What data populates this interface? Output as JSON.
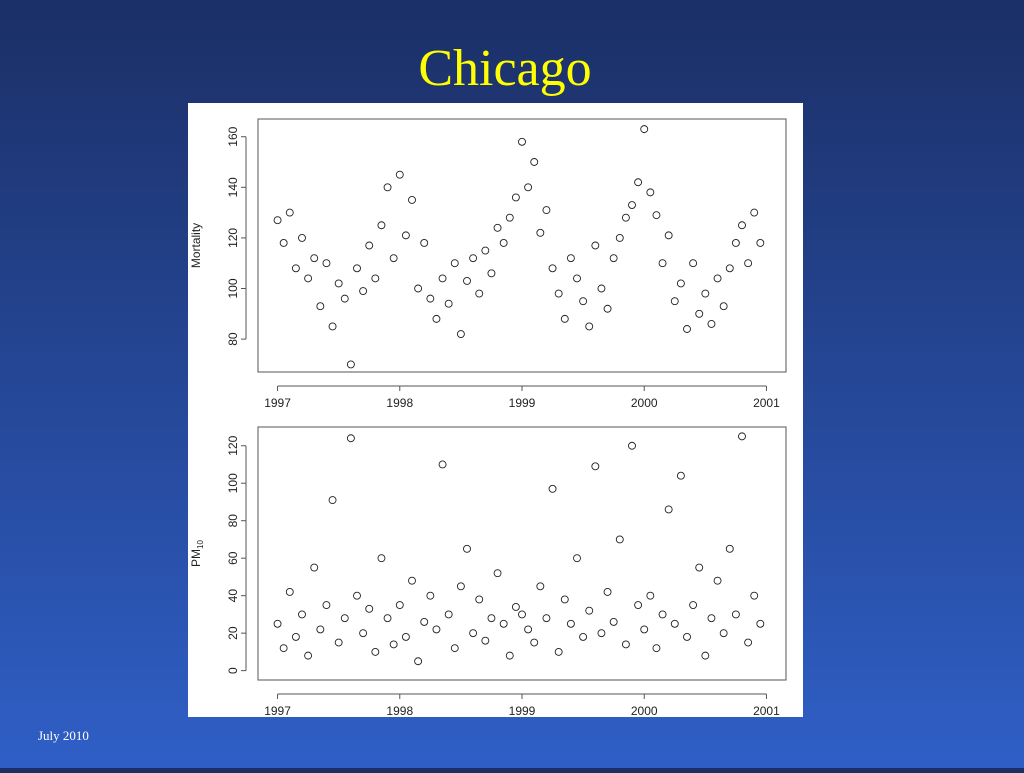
{
  "slide": {
    "title": "Chicago",
    "footer": "July 2010"
  },
  "chart_data": [
    {
      "type": "scatter",
      "ylabel": "Mortality",
      "x": [
        1997.0,
        1997.05,
        1997.1,
        1997.15,
        1997.2,
        1997.25,
        1997.3,
        1997.35,
        1997.4,
        1997.45,
        1997.5,
        1997.55,
        1997.6,
        1997.65,
        1997.7,
        1997.75,
        1997.8,
        1997.85,
        1997.9,
        1997.95,
        1998.0,
        1998.05,
        1998.1,
        1998.15,
        1998.2,
        1998.25,
        1998.3,
        1998.35,
        1998.4,
        1998.45,
        1998.5,
        1998.55,
        1998.6,
        1998.65,
        1998.7,
        1998.75,
        1998.8,
        1998.85,
        1998.9,
        1998.95,
        1999.0,
        1999.05,
        1999.1,
        1999.15,
        1999.2,
        1999.25,
        1999.3,
        1999.35,
        1999.4,
        1999.45,
        1999.5,
        1999.55,
        1999.6,
        1999.65,
        1999.7,
        1999.75,
        1999.8,
        1999.85,
        1999.9,
        1999.95,
        2000.0,
        2000.05,
        2000.1,
        2000.15,
        2000.2,
        2000.25,
        2000.3,
        2000.35,
        2000.4,
        2000.45,
        2000.5,
        2000.55,
        2000.6,
        2000.65,
        2000.7,
        2000.75,
        2000.8,
        2000.85,
        2000.9,
        2000.95
      ],
      "values": [
        127,
        118,
        130,
        108,
        120,
        104,
        112,
        93,
        110,
        85,
        102,
        96,
        70,
        108,
        99,
        117,
        104,
        125,
        140,
        112,
        145,
        121,
        135,
        100,
        118,
        96,
        88,
        104,
        94,
        110,
        82,
        103,
        112,
        98,
        115,
        106,
        124,
        118,
        128,
        136,
        158,
        140,
        150,
        122,
        131,
        108,
        98,
        88,
        112,
        104,
        95,
        85,
        117,
        100,
        92,
        112,
        120,
        128,
        133,
        142,
        163,
        138,
        129,
        110,
        121,
        95,
        102,
        84,
        110,
        90,
        98,
        86,
        104,
        93,
        108,
        118,
        125,
        110,
        130,
        118
      ],
      "xlim": [
        1996.84,
        2001.16
      ],
      "ylim": [
        67,
        167
      ],
      "xticks": [
        1997,
        1998,
        1999,
        2000,
        2001
      ],
      "yticks": [
        80,
        100,
        120,
        140,
        160
      ],
      "color": "#222222"
    },
    {
      "type": "scatter",
      "ylabel": "PM",
      "ylabel_subscript": "10",
      "x": [
        1997.0,
        1997.05,
        1997.1,
        1997.15,
        1997.2,
        1997.25,
        1997.3,
        1997.35,
        1997.4,
        1997.45,
        1997.5,
        1997.55,
        1997.6,
        1997.65,
        1997.7,
        1997.75,
        1997.8,
        1997.85,
        1997.9,
        1997.95,
        1998.0,
        1998.05,
        1998.1,
        1998.15,
        1998.2,
        1998.25,
        1998.3,
        1998.35,
        1998.4,
        1998.45,
        1998.5,
        1998.55,
        1998.6,
        1998.65,
        1998.7,
        1998.75,
        1998.8,
        1998.85,
        1998.9,
        1998.95,
        1999.0,
        1999.05,
        1999.1,
        1999.15,
        1999.2,
        1999.25,
        1999.3,
        1999.35,
        1999.4,
        1999.45,
        1999.5,
        1999.55,
        1999.6,
        1999.65,
        1999.7,
        1999.75,
        1999.8,
        1999.85,
        1999.9,
        1999.95,
        2000.0,
        2000.05,
        2000.1,
        2000.15,
        2000.2,
        2000.25,
        2000.3,
        2000.35,
        2000.4,
        2000.45,
        2000.5,
        2000.55,
        2000.6,
        2000.65,
        2000.7,
        2000.75,
        2000.8,
        2000.85,
        2000.9,
        2000.95
      ],
      "values": [
        25,
        12,
        42,
        18,
        30,
        8,
        55,
        22,
        35,
        91,
        15,
        28,
        124,
        40,
        20,
        33,
        10,
        60,
        28,
        14,
        35,
        18,
        48,
        5,
        26,
        40,
        22,
        110,
        30,
        12,
        45,
        65,
        20,
        38,
        16,
        28,
        52,
        25,
        8,
        34,
        30,
        22,
        15,
        45,
        28,
        97,
        10,
        38,
        25,
        60,
        18,
        32,
        109,
        20,
        42,
        26,
        70,
        14,
        120,
        35,
        22,
        40,
        12,
        30,
        86,
        25,
        104,
        18,
        35,
        55,
        8,
        28,
        48,
        20,
        65,
        30,
        125,
        15,
        40,
        25
      ],
      "xlim": [
        1996.84,
        2001.16
      ],
      "ylim": [
        -5,
        130
      ],
      "xticks": [
        1997,
        1998,
        1999,
        2000,
        2001
      ],
      "yticks": [
        0,
        20,
        40,
        60,
        80,
        100,
        120
      ],
      "color": "#222222"
    }
  ]
}
